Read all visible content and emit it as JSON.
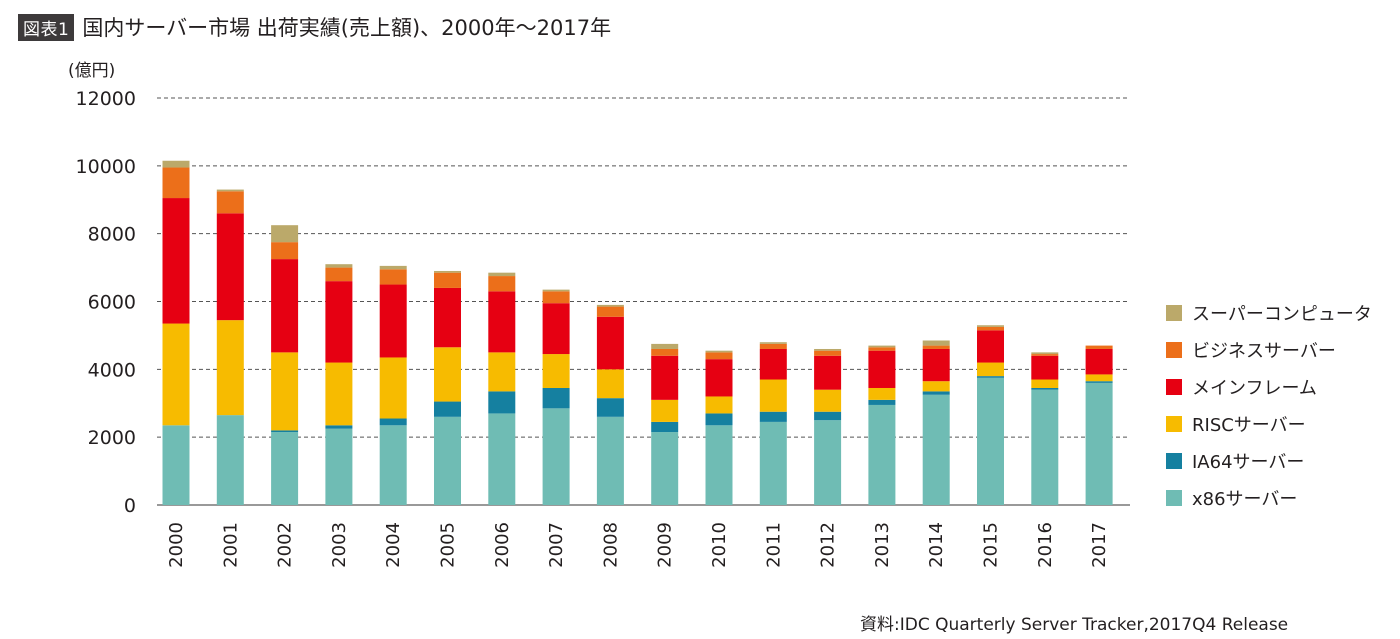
{
  "header": {
    "badge": "図表1",
    "title": "国内サーバー市場 出荷実績(売上額)、2000年〜2017年"
  },
  "unit_label": "(億円)",
  "source": "資料:IDC Quarterly Server Tracker,2017Q4 Release",
  "colors": {
    "x86": "#6fbcb4",
    "ia64": "#1580a0",
    "risc": "#f7bb00",
    "mainframe": "#e60012",
    "business": "#ec6f1a",
    "super": "#bba96a",
    "grid": "#555555"
  },
  "chart_data": {
    "type": "bar",
    "stacked": true,
    "categories": [
      "2000",
      "2001",
      "2002",
      "2003",
      "2004",
      "2005",
      "2006",
      "2007",
      "2008",
      "2009",
      "2010",
      "2011",
      "2012",
      "2013",
      "2014",
      "2015",
      "2016",
      "2017"
    ],
    "ylim": [
      0,
      12000
    ],
    "yticks": [
      0,
      2000,
      4000,
      6000,
      8000,
      10000,
      12000
    ],
    "ylabel": "(億円)",
    "grid": true,
    "legend_position": "right",
    "series": [
      {
        "name": "x86サーバー",
        "color": "#6fbcb4",
        "values": [
          2350,
          2650,
          2150,
          2250,
          2350,
          2600,
          2700,
          2850,
          2600,
          2150,
          2350,
          2450,
          2500,
          2950,
          3250,
          3750,
          3400,
          3600
        ]
      },
      {
        "name": "IA64サーバー",
        "color": "#1580a0",
        "values": [
          0,
          0,
          50,
          100,
          200,
          450,
          650,
          600,
          550,
          300,
          350,
          300,
          250,
          150,
          100,
          50,
          50,
          50
        ]
      },
      {
        "name": "RISCサーバー",
        "color": "#f7bb00",
        "values": [
          3000,
          2800,
          2300,
          1850,
          1800,
          1600,
          1150,
          1000,
          850,
          650,
          500,
          950,
          650,
          350,
          300,
          400,
          250,
          200
        ]
      },
      {
        "name": "メインフレーム",
        "color": "#e60012",
        "values": [
          3700,
          3150,
          2750,
          2400,
          2150,
          1750,
          1800,
          1500,
          1550,
          1300,
          1100,
          900,
          1000,
          1100,
          950,
          950,
          700,
          750
        ]
      },
      {
        "name": "ビジネスサーバー",
        "color": "#ec6f1a",
        "values": [
          900,
          650,
          500,
          400,
          450,
          450,
          450,
          350,
          300,
          200,
          200,
          150,
          150,
          100,
          100,
          100,
          50,
          100
        ]
      },
      {
        "name": "スーパーコンピュータ",
        "color": "#bba96a",
        "values": [
          200,
          50,
          500,
          100,
          100,
          50,
          100,
          50,
          50,
          150,
          50,
          50,
          50,
          50,
          150,
          50,
          50,
          0
        ]
      }
    ]
  }
}
